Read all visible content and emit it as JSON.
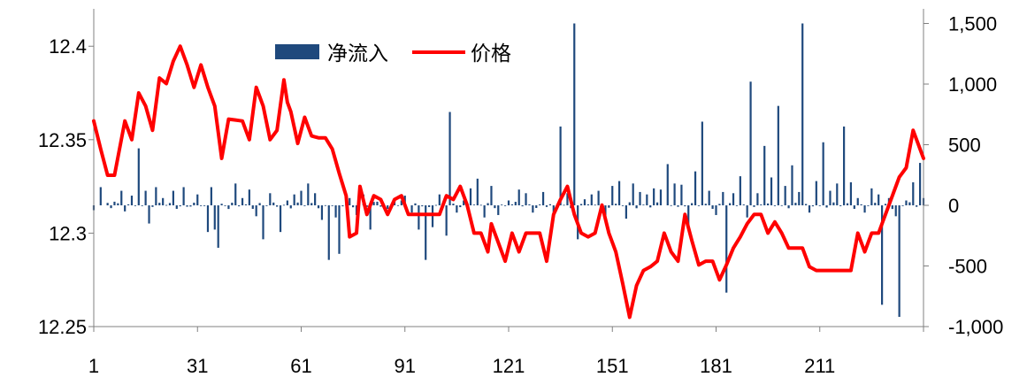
{
  "chart_data": {
    "type": "bar+line",
    "title": "",
    "xlabel": "",
    "ylabel": "",
    "x_tick_labels": [
      "1",
      "31",
      "61",
      "91",
      "121",
      "151",
      "181",
      "211"
    ],
    "x_range": [
      1,
      241
    ],
    "left_axis": {
      "range": [
        12.25,
        12.42
      ],
      "ticks": [
        "12.25",
        "12.3",
        "12.35",
        "12.4"
      ]
    },
    "right_axis": {
      "range": [
        -1000,
        1500
      ],
      "ticks": [
        "-1,000",
        "-500",
        "0",
        "500",
        "1,000",
        "1,500"
      ]
    },
    "legend": {
      "position": "top-center",
      "entries": [
        "净流入",
        "价格"
      ]
    },
    "colors": {
      "bar": "#1F497D",
      "line": "#FF0000",
      "axis": "#808080"
    },
    "grid": false,
    "series": [
      {
        "name": "净流入",
        "type": "bar",
        "axis": "right",
        "keypoints": [
          [
            1,
            -40
          ],
          [
            3,
            150
          ],
          [
            5,
            20
          ],
          [
            7,
            30
          ],
          [
            9,
            120
          ],
          [
            10,
            -50
          ],
          [
            12,
            80
          ],
          [
            14,
            470
          ],
          [
            16,
            120
          ],
          [
            17,
            -150
          ],
          [
            19,
            150
          ],
          [
            21,
            60
          ],
          [
            24,
            120
          ],
          [
            27,
            150
          ],
          [
            31,
            90
          ],
          [
            34,
            -220
          ],
          [
            35,
            150
          ],
          [
            36,
            -200
          ],
          [
            37,
            -350
          ],
          [
            40,
            -30
          ],
          [
            42,
            180
          ],
          [
            44,
            60
          ],
          [
            46,
            130
          ],
          [
            48,
            -90
          ],
          [
            50,
            -280
          ],
          [
            52,
            100
          ],
          [
            55,
            -220
          ],
          [
            57,
            40
          ],
          [
            59,
            90
          ],
          [
            61,
            120
          ],
          [
            63,
            180
          ],
          [
            65,
            100
          ],
          [
            67,
            -120
          ],
          [
            69,
            -450
          ],
          [
            71,
            -100
          ],
          [
            72,
            -400
          ],
          [
            75,
            60
          ],
          [
            77,
            -80
          ],
          [
            79,
            90
          ],
          [
            81,
            -200
          ],
          [
            83,
            30
          ],
          [
            86,
            -30
          ],
          [
            88,
            50
          ],
          [
            90,
            40
          ],
          [
            91,
            80
          ],
          [
            93,
            -60
          ],
          [
            95,
            -200
          ],
          [
            97,
            -450
          ],
          [
            99,
            -180
          ],
          [
            101,
            90
          ],
          [
            103,
            -250
          ],
          [
            104,
            770
          ],
          [
            106,
            -60
          ],
          [
            108,
            40
          ],
          [
            110,
            140
          ],
          [
            112,
            220
          ],
          [
            114,
            -100
          ],
          [
            116,
            160
          ],
          [
            118,
            -80
          ],
          [
            121,
            40
          ],
          [
            124,
            130
          ],
          [
            126,
            100
          ],
          [
            128,
            -60
          ],
          [
            131,
            110
          ],
          [
            134,
            -70
          ],
          [
            136,
            650
          ],
          [
            138,
            100
          ],
          [
            140,
            1500
          ],
          [
            141,
            -280
          ],
          [
            143,
            50
          ],
          [
            145,
            90
          ],
          [
            147,
            120
          ],
          [
            149,
            -90
          ],
          [
            151,
            160
          ],
          [
            153,
            200
          ],
          [
            155,
            -110
          ],
          [
            157,
            180
          ],
          [
            159,
            110
          ],
          [
            161,
            90
          ],
          [
            163,
            140
          ],
          [
            165,
            130
          ],
          [
            167,
            340
          ],
          [
            169,
            180
          ],
          [
            171,
            170
          ],
          [
            173,
            -200
          ],
          [
            175,
            280
          ],
          [
            177,
            690
          ],
          [
            179,
            120
          ],
          [
            181,
            -80
          ],
          [
            183,
            110
          ],
          [
            184,
            -720
          ],
          [
            186,
            100
          ],
          [
            188,
            240
          ],
          [
            190,
            -100
          ],
          [
            191,
            1020
          ],
          [
            193,
            100
          ],
          [
            195,
            490
          ],
          [
            197,
            230
          ],
          [
            199,
            820
          ],
          [
            201,
            160
          ],
          [
            203,
            330
          ],
          [
            205,
            110
          ],
          [
            206,
            1500
          ],
          [
            208,
            -60
          ],
          [
            210,
            200
          ],
          [
            212,
            520
          ],
          [
            214,
            120
          ],
          [
            216,
            180
          ],
          [
            218,
            650
          ],
          [
            220,
            190
          ],
          [
            222,
            60
          ],
          [
            224,
            -60
          ],
          [
            226,
            140
          ],
          [
            228,
            90
          ],
          [
            229,
            -820
          ],
          [
            231,
            60
          ],
          [
            233,
            -90
          ],
          [
            234,
            -920
          ],
          [
            236,
            40
          ],
          [
            238,
            190
          ],
          [
            240,
            350
          ],
          [
            241,
            60
          ]
        ]
      },
      {
        "name": "价格",
        "type": "line",
        "axis": "left",
        "keypoints": [
          [
            1,
            12.36
          ],
          [
            3,
            12.345
          ],
          [
            5,
            12.331
          ],
          [
            7,
            12.331
          ],
          [
            10,
            12.36
          ],
          [
            12,
            12.35
          ],
          [
            14,
            12.375
          ],
          [
            16,
            12.368
          ],
          [
            18,
            12.355
          ],
          [
            20,
            12.383
          ],
          [
            22,
            12.38
          ],
          [
            24,
            12.392
          ],
          [
            26,
            12.4
          ],
          [
            28,
            12.39
          ],
          [
            30,
            12.378
          ],
          [
            32,
            12.39
          ],
          [
            34,
            12.378
          ],
          [
            36,
            12.368
          ],
          [
            38,
            12.34
          ],
          [
            40,
            12.361
          ],
          [
            44,
            12.36
          ],
          [
            46,
            12.35
          ],
          [
            48,
            12.378
          ],
          [
            50,
            12.368
          ],
          [
            52,
            12.35
          ],
          [
            54,
            12.355
          ],
          [
            56,
            12.382
          ],
          [
            57,
            12.37
          ],
          [
            58,
            12.365
          ],
          [
            60,
            12.348
          ],
          [
            62,
            12.362
          ],
          [
            64,
            12.352
          ],
          [
            66,
            12.351
          ],
          [
            68,
            12.351
          ],
          [
            70,
            12.345
          ],
          [
            72,
            12.332
          ],
          [
            74,
            12.32
          ],
          [
            75,
            12.298
          ],
          [
            77,
            12.3
          ],
          [
            78,
            12.325
          ],
          [
            80,
            12.31
          ],
          [
            82,
            12.32
          ],
          [
            84,
            12.318
          ],
          [
            86,
            12.31
          ],
          [
            88,
            12.318
          ],
          [
            90,
            12.32
          ],
          [
            92,
            12.31
          ],
          [
            94,
            12.31
          ],
          [
            98,
            12.31
          ],
          [
            101,
            12.31
          ],
          [
            103,
            12.32
          ],
          [
            105,
            12.318
          ],
          [
            107,
            12.325
          ],
          [
            109,
            12.315
          ],
          [
            111,
            12.3
          ],
          [
            113,
            12.3
          ],
          [
            115,
            12.29
          ],
          [
            116,
            12.305
          ],
          [
            118,
            12.295
          ],
          [
            120,
            12.285
          ],
          [
            122,
            12.3
          ],
          [
            124,
            12.29
          ],
          [
            126,
            12.3
          ],
          [
            128,
            12.3
          ],
          [
            130,
            12.3
          ],
          [
            132,
            12.285
          ],
          [
            134,
            12.31
          ],
          [
            136,
            12.318
          ],
          [
            138,
            12.325
          ],
          [
            140,
            12.31
          ],
          [
            142,
            12.3
          ],
          [
            144,
            12.298
          ],
          [
            146,
            12.3
          ],
          [
            148,
            12.315
          ],
          [
            150,
            12.3
          ],
          [
            152,
            12.29
          ],
          [
            154,
            12.273
          ],
          [
            156,
            12.255
          ],
          [
            158,
            12.272
          ],
          [
            160,
            12.28
          ],
          [
            162,
            12.282
          ],
          [
            164,
            12.285
          ],
          [
            166,
            12.3
          ],
          [
            168,
            12.29
          ],
          [
            170,
            12.285
          ],
          [
            172,
            12.31
          ],
          [
            174,
            12.296
          ],
          [
            176,
            12.283
          ],
          [
            178,
            12.285
          ],
          [
            180,
            12.285
          ],
          [
            182,
            12.275
          ],
          [
            184,
            12.283
          ],
          [
            186,
            12.292
          ],
          [
            188,
            12.298
          ],
          [
            190,
            12.305
          ],
          [
            192,
            12.31
          ],
          [
            194,
            12.31
          ],
          [
            196,
            12.3
          ],
          [
            198,
            12.306
          ],
          [
            200,
            12.3
          ],
          [
            202,
            12.292
          ],
          [
            204,
            12.292
          ],
          [
            206,
            12.292
          ],
          [
            208,
            12.282
          ],
          [
            210,
            12.28
          ],
          [
            212,
            12.28
          ],
          [
            216,
            12.28
          ],
          [
            220,
            12.28
          ],
          [
            222,
            12.3
          ],
          [
            224,
            12.29
          ],
          [
            226,
            12.3
          ],
          [
            228,
            12.3
          ],
          [
            230,
            12.31
          ],
          [
            232,
            12.32
          ],
          [
            234,
            12.33
          ],
          [
            236,
            12.335
          ],
          [
            238,
            12.355
          ],
          [
            240,
            12.345
          ],
          [
            241,
            12.34
          ]
        ]
      }
    ]
  }
}
